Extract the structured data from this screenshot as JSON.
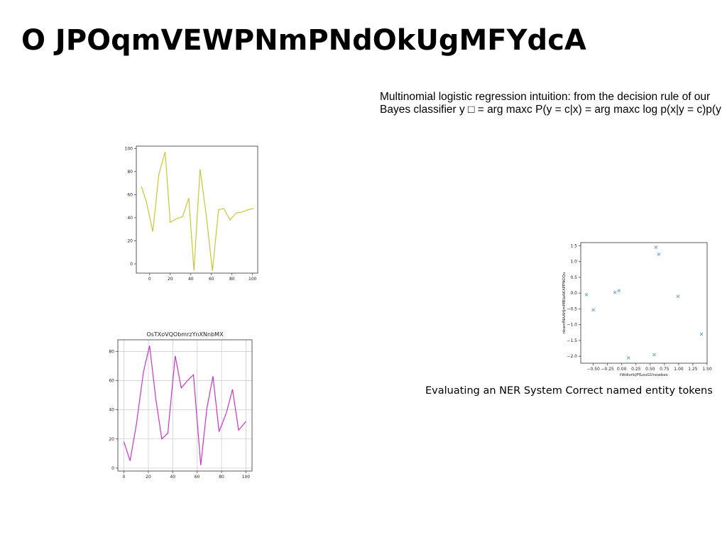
{
  "slide": {
    "title": "O  JPOqmVEWPNmPNdOkUgMFYdcA",
    "body_lines": [
      "Multinomial logistic regression intuition: from the decision rule of our",
      "Bayes classifier y □ = arg maxc P(y = c|x) = arg maxc log p(x|y = c)p(y"
    ],
    "caption": "Evaluating an NER System Correct named entity tokens"
  },
  "chart_data": [
    {
      "type": "line",
      "title": "",
      "xlabel": "",
      "ylabel": "",
      "grid": false,
      "color": "#c8c832",
      "x": [
        -8,
        -3,
        3,
        9,
        15,
        20,
        26,
        32,
        38,
        43,
        49,
        55,
        61,
        67,
        72,
        78,
        84,
        90,
        96,
        101
      ],
      "y": [
        67,
        53,
        28,
        78,
        97,
        36,
        39,
        41,
        57,
        -6,
        82,
        42,
        -6,
        47,
        48,
        38,
        44,
        45,
        47,
        48
      ],
      "xlim": [
        -13,
        105
      ],
      "ylim": [
        -8,
        102
      ],
      "xticks": [
        0,
        20,
        40,
        60,
        80,
        100
      ],
      "yticks": [
        0,
        20,
        40,
        60,
        80,
        100
      ]
    },
    {
      "type": "line",
      "title": "OsTXoVQObmrzYnXNnbMX",
      "xlabel": "",
      "ylabel": "",
      "grid": true,
      "color": "#cc33cc",
      "x": [
        0,
        5,
        10,
        16,
        21,
        26,
        31,
        36,
        42,
        47,
        52,
        57,
        63,
        68,
        73,
        78,
        84,
        89,
        94,
        100
      ],
      "y": [
        18,
        5,
        29,
        66,
        84,
        48,
        20,
        24,
        77,
        55,
        60,
        64,
        2,
        41,
        63,
        25,
        38,
        54,
        26,
        32
      ],
      "xlim": [
        -5,
        105
      ],
      "ylim": [
        -2,
        88
      ],
      "xticks": [
        0,
        20,
        40,
        60,
        80,
        100
      ],
      "yticks": [
        0,
        20,
        40,
        60,
        80
      ]
    },
    {
      "type": "scatter",
      "title": "",
      "xlabel": "tWdivrbjPfLouGUnowbex",
      "ylabel": "nbwxfNAAHjmMBIaAKXPPNOQu",
      "grid": false,
      "color": "#5b9bd5",
      "marker": "x",
      "x": [
        -0.62,
        -0.5,
        -0.12,
        -0.05,
        0.12,
        0.57,
        0.6,
        0.65,
        0.99,
        1.4
      ],
      "y": [
        -0.05,
        -0.53,
        0.02,
        0.08,
        -2.05,
        -1.95,
        1.45,
        1.23,
        -0.1,
        -1.3
      ],
      "xlim": [
        -0.72,
        1.5
      ],
      "ylim": [
        -2.22,
        1.6
      ],
      "xticks": [
        -0.5,
        -0.25,
        0.0,
        0.25,
        0.5,
        0.75,
        1.0,
        1.25,
        1.5
      ],
      "xtick_labels": [
        "−0.50",
        "−0.25",
        "0.00",
        "0.25",
        "0.50",
        "0.75",
        "1.00",
        "1.25",
        "1.50"
      ],
      "yticks": [
        1.5,
        1.0,
        0.5,
        0.0,
        -0.5,
        -1.0,
        -1.5,
        -2.0
      ],
      "ytick_labels": [
        "1.5",
        "1.0",
        "0.5",
        "0.0",
        "−0.5",
        "−1.0",
        "−1.5",
        "−2.0"
      ]
    }
  ]
}
